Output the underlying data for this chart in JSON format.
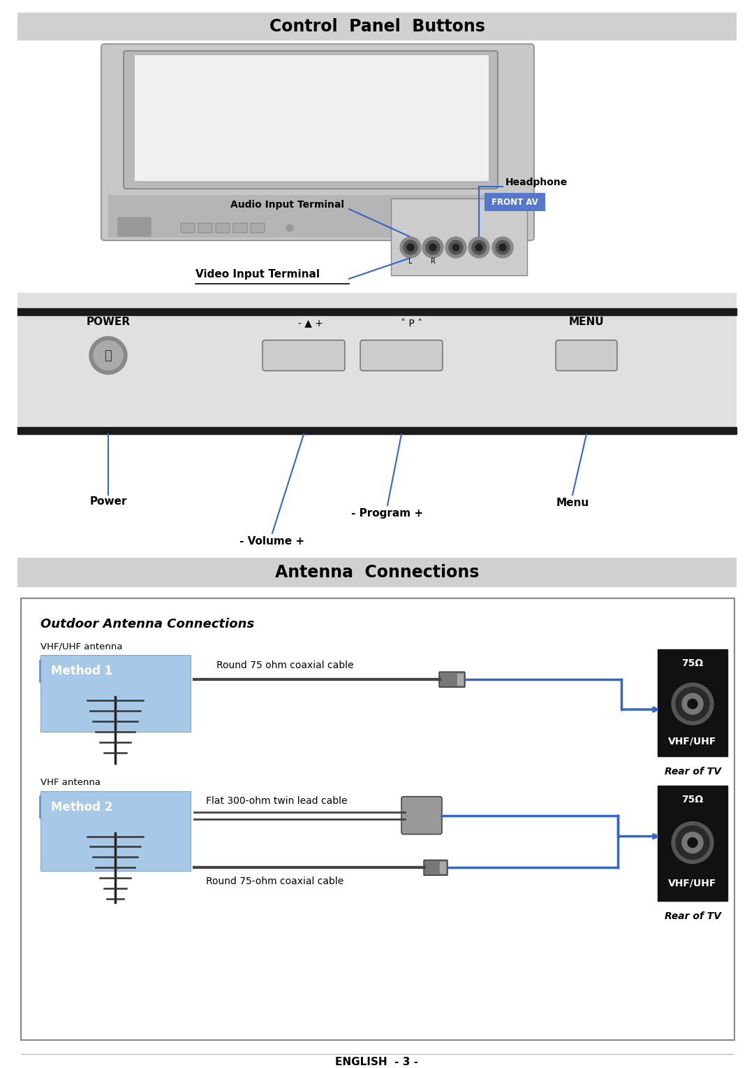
{
  "title1": "Control  Panel  Buttons",
  "title2": "Antenna  Connections",
  "footer": "ENGLISH  - 3 -",
  "bg_color": "#ffffff",
  "header_bg": "#d0d0d0",
  "section_bg": "#d0d0d0",
  "blue_line_color": "#3366cc",
  "front_av_bg": "#5577cc",
  "front_av_text": "FRONT AV",
  "tv_black": "#1a1a1a",
  "control_panel_labels": {
    "POWER": "POWER",
    "MENU": "MENU",
    "power_label": "Power",
    "volume_label": "- Volume +",
    "program_label": "- Program +",
    "menu_label": "Menu"
  },
  "front_panel_labels": {
    "headphone": "Headphone",
    "audio_input": "Audio Input Terminal",
    "video_input": "Video Input Terminal"
  },
  "antenna_labels": {
    "outdoor_title": "Outdoor Antenna Connections",
    "vhf_uhf_antenna": "VHF/UHF antenna",
    "vhf_antenna": "VHF antenna",
    "method1": "Method 1",
    "method2": "Method 2",
    "round_75_coax1": "Round 75 ohm coaxial cable",
    "flat_300_cable": "Flat 300-ohm twin lead cable",
    "round_75_coax2": "Round 75-ohm coaxial cable",
    "vhfuhf_label": "VHF/UHF",
    "rear_tv": "Rear of TV",
    "ohm75": "75Ω"
  }
}
